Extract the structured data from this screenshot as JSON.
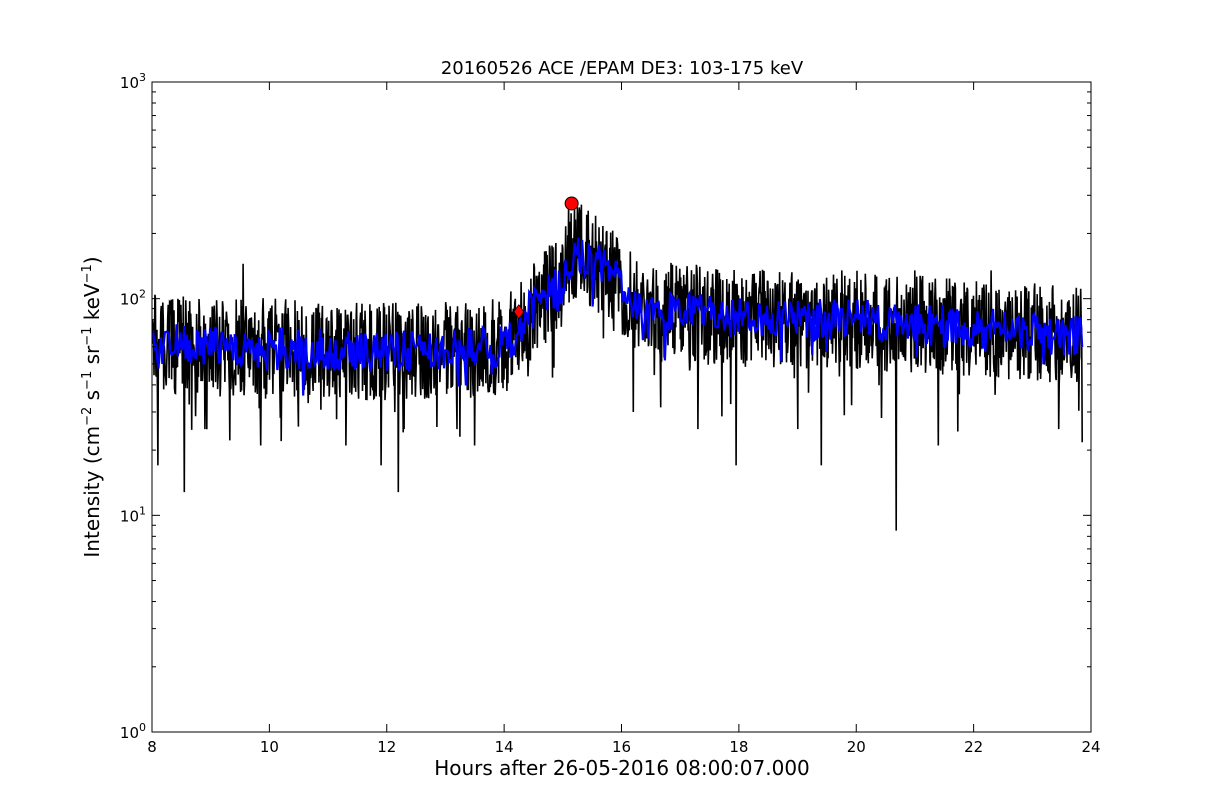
{
  "chart_data": {
    "type": "line",
    "title": "20160526 ACE /EPAM DE3: 103-175 keV",
    "xlabel": "Hours after 26-05-2016 08:00:07.000",
    "ylabel_parts": [
      "Intensity (cm",
      "−2",
      " s",
      "−1",
      " sr",
      "−1",
      " keV",
      "−1",
      ")"
    ],
    "xlim": [
      8,
      24
    ],
    "ylim": [
      1,
      1000
    ],
    "yscale": "log",
    "grid": false,
    "xticks": [
      8,
      10,
      12,
      14,
      16,
      18,
      20,
      22,
      24
    ],
    "yticks": [
      {
        "value": 1,
        "base": "10",
        "exp": "0"
      },
      {
        "value": 10,
        "base": "10",
        "exp": "1"
      },
      {
        "value": 100,
        "base": "10",
        "exp": "2"
      },
      {
        "value": 1000,
        "base": "10",
        "exp": "3"
      }
    ],
    "series": [
      {
        "color": "#000000",
        "profile_x": [
          8.0,
          9.0,
          10.0,
          11.0,
          12.0,
          13.0,
          14.0,
          14.3,
          14.6,
          15.0,
          15.2,
          15.5,
          16.0,
          16.4,
          17.0,
          18.0,
          19.0,
          20.0,
          21.0,
          22.0,
          23.0,
          23.85
        ],
        "profile_y": [
          62,
          60,
          60,
          58,
          57,
          58,
          60,
          75,
          100,
          115,
          170,
          150,
          115,
          85,
          88,
          82,
          80,
          80,
          76,
          74,
          70,
          66
        ],
        "spikes": [
          {
            "x": 8.1,
            "y": 17
          },
          {
            "x": 8.55,
            "y": 12.8
          },
          {
            "x": 8.9,
            "y": 25
          },
          {
            "x": 9.55,
            "y": 145
          },
          {
            "x": 9.85,
            "y": 21
          },
          {
            "x": 10.2,
            "y": 22
          },
          {
            "x": 11.3,
            "y": 21
          },
          {
            "x": 11.9,
            "y": 17
          },
          {
            "x": 12.2,
            "y": 12.8
          },
          {
            "x": 12.3,
            "y": 25
          },
          {
            "x": 13.2,
            "y": 25
          },
          {
            "x": 13.5,
            "y": 21
          },
          {
            "x": 14.85,
            "y": 48
          },
          {
            "x": 15.1,
            "y": 280
          },
          {
            "x": 16.2,
            "y": 30
          },
          {
            "x": 17.3,
            "y": 25
          },
          {
            "x": 17.95,
            "y": 17
          },
          {
            "x": 19.0,
            "y": 25
          },
          {
            "x": 19.4,
            "y": 17
          },
          {
            "x": 20.68,
            "y": 8.5
          },
          {
            "x": 21.0,
            "y": 135
          },
          {
            "x": 21.4,
            "y": 21
          },
          {
            "x": 22.3,
            "y": 135
          },
          {
            "x": 23.45,
            "y": 25
          }
        ]
      },
      {
        "color": "#0000ff",
        "profile_x": [
          8.0,
          9.0,
          10.0,
          11.0,
          12.0,
          13.0,
          14.0,
          14.3,
          14.6,
          15.0,
          15.2,
          15.5,
          16.0,
          16.4,
          17.0,
          18.0,
          19.0,
          20.0,
          21.0,
          22.0,
          23.0,
          23.85
        ],
        "profile_y": [
          62,
          60,
          60,
          58,
          57,
          58,
          60,
          75,
          100,
          115,
          170,
          150,
          115,
          85,
          88,
          82,
          80,
          80,
          76,
          74,
          70,
          66
        ]
      }
    ],
    "markers": [
      {
        "shape": "diamond",
        "x": 14.25,
        "y": 87,
        "color": "#ff0000"
      },
      {
        "shape": "circle",
        "x": 15.15,
        "y": 275,
        "color": "#ff0000"
      }
    ]
  }
}
